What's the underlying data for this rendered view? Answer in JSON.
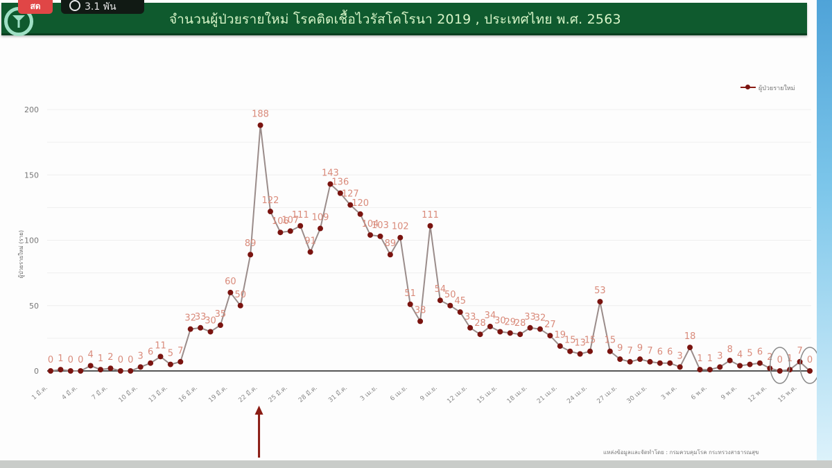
{
  "overlay": {
    "live_badge": "สด",
    "viewer_count": "3.1 พัน"
  },
  "header": {
    "title": "จำนวนผู้ป่วยรายใหม่ โรคติดเชื้อไวรัสโคโรนา 2019 , ประเทศไทย พ.ศ. 2563",
    "logo": "ministry-of-public-health-logo"
  },
  "legend": {
    "label": "ผู้ป่วยรายใหม่"
  },
  "source_note": "แหล่งข้อมูลและจัดทำโดย : กรมควบคุมโรค กระทรวงสาธารณสุข",
  "colors": {
    "header_bg": "#0f5a2e",
    "header_text": "#d8f5c8",
    "line": "#9a8c8a",
    "marker": "#7a1410",
    "data_label": "#d98a7a",
    "arrow": "#8a1c14",
    "highlight_circle": "#8a8a8a"
  },
  "chart_data": {
    "type": "line",
    "title": "จำนวนผู้ป่วยรายใหม่ โรคติดเชื้อไวรัสโคโรนา 2019 , ประเทศไทย พ.ศ. 2563",
    "xlabel": "",
    "ylabel": "ผู้ป่วยรายใหม่ (ราย)",
    "ylim": [
      0,
      200
    ],
    "yticks": [
      0,
      50,
      100,
      150,
      200
    ],
    "grid": true,
    "legend_position": "top-right",
    "x_tick_labels": [
      "1 มี.ค.",
      "4 มี.ค.",
      "7 มี.ค.",
      "10 มี.ค.",
      "13 มี.ค.",
      "16 มี.ค.",
      "19 มี.ค.",
      "22 มี.ค.",
      "25 มี.ค.",
      "28 มี.ค.",
      "31 มี.ค.",
      "3 เม.ย.",
      "6 เม.ย.",
      "9 เม.ย.",
      "12 เม.ย.",
      "15 เม.ย.",
      "18 เม.ย.",
      "21 เม.ย.",
      "24 เม.ย.",
      "27 เม.ย.",
      "30 เม.ย.",
      "3 พ.ค.",
      "6 พ.ค.",
      "9 พ.ค.",
      "12 พ.ค.",
      "15 พ.ค."
    ],
    "x_start": "1 มี.ค.",
    "x_end": "16 พ.ค.",
    "series": [
      {
        "name": "ผู้ป่วยรายใหม่",
        "values": [
          0,
          1,
          0,
          0,
          4,
          1,
          2,
          0,
          0,
          3,
          6,
          11,
          5,
          7,
          32,
          33,
          30,
          35,
          60,
          50,
          89,
          188,
          122,
          106,
          107,
          111,
          91,
          109,
          143,
          136,
          127,
          120,
          104,
          103,
          89,
          102,
          51,
          38,
          111,
          54,
          50,
          45,
          33,
          28,
          34,
          30,
          29,
          28,
          33,
          32,
          27,
          19,
          15,
          13,
          15,
          53,
          15,
          9,
          7,
          9,
          7,
          6,
          6,
          3,
          18,
          1,
          1,
          3,
          8,
          4,
          5,
          6,
          2,
          0,
          1,
          7,
          0
        ]
      }
    ],
    "annotations": [
      {
        "type": "arrow",
        "at": "22 มี.ค.",
        "direction": "up"
      },
      {
        "type": "circle",
        "at_index": 73,
        "value": 0
      },
      {
        "type": "circle",
        "at_index": 76,
        "value": 0
      }
    ]
  }
}
